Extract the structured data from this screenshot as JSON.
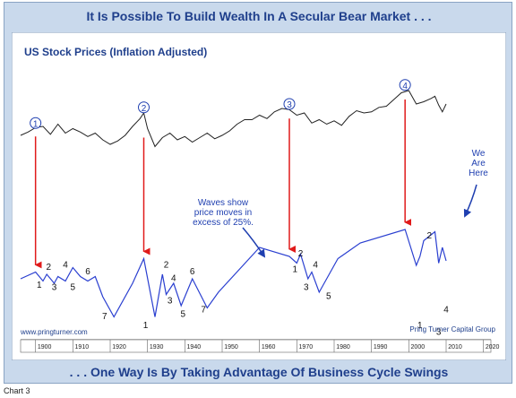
{
  "headline_top": "It Is Possible To Build Wealth In A Secular Bear Market . . .",
  "headline_bottom": ". . . One Way Is By Taking Advantage Of Business Cycle Swings",
  "caption": "Chart 3",
  "colors": {
    "frame_bg": "#c9d9ec",
    "headline_text": "#1f3f8c",
    "price_line": "#222222",
    "cycle_line": "#2a3fd0",
    "arrow": "#e01a1a",
    "annotation_text": "#1f3fb0"
  },
  "chart_data": {
    "type": "line",
    "title": "US Stock Prices (Inflation Adjusted)",
    "source_left": "www.pringturner.com",
    "source_right": "Pring Turner Capital Group",
    "xlim": [
      1896,
      2022
    ],
    "x_ticks": [
      "1900",
      "1910",
      "1920",
      "1930",
      "1940",
      "1950",
      "1960",
      "1970",
      "1980",
      "1990",
      "2000",
      "2010",
      "2020"
    ],
    "x_tick_values": [
      1900,
      1910,
      1920,
      1930,
      1940,
      1950,
      1960,
      1970,
      1980,
      1990,
      2000,
      2010,
      2020
    ],
    "grid": false,
    "legend": "none",
    "series": [
      {
        "x": [
          1896,
          1898,
          1900,
          1902,
          1904,
          1906,
          1908,
          1910,
          1912,
          1914,
          1916,
          1918,
          1920,
          1922,
          1924,
          1926,
          1928,
          1929,
          1930,
          1932,
          1934,
          1936,
          1938,
          1940,
          1942,
          1944,
          1946,
          1948,
          1950,
          1952,
          1954,
          1956,
          1958,
          1960,
          1962,
          1964,
          1966,
          1968,
          1970,
          1972,
          1974,
          1976,
          1978,
          1980,
          1982,
          1984,
          1986,
          1988,
          1990,
          1992,
          1994,
          1996,
          1998,
          2000,
          2002,
          2004,
          2006,
          2007,
          2008,
          2009,
          2010
        ],
        "y": [
          36,
          39,
          43,
          44,
          37,
          46,
          38,
          42,
          39,
          35,
          38,
          32,
          28,
          31,
          36,
          44,
          51,
          56,
          42,
          26,
          34,
          38,
          32,
          35,
          30,
          34,
          38,
          33,
          36,
          40,
          46,
          50,
          50,
          54,
          51,
          57,
          60,
          59,
          54,
          56,
          47,
          50,
          46,
          49,
          45,
          53,
          58,
          56,
          57,
          61,
          62,
          68,
          74,
          76,
          64,
          66,
          69,
          71,
          63,
          57,
          64
        ]
      },
      {
        "x": [
          1896,
          1900,
          1902,
          1903,
          1905,
          1906,
          1908,
          1910,
          1912,
          1914,
          1916,
          1918,
          1921,
          1926,
          1929,
          1932,
          1934,
          1935,
          1937,
          1939,
          1942,
          1946,
          1949,
          1960,
          1968,
          1970,
          1971,
          1973,
          1974,
          1976,
          1981,
          1987,
          1999,
          2002,
          2003,
          2004,
          2007,
          2008,
          2009,
          2010
        ],
        "y": [
          4,
          7,
          3,
          6,
          2,
          5,
          3,
          9,
          5,
          3,
          5,
          -4,
          -13,
          2,
          13,
          -13,
          6,
          -3,
          2,
          -8,
          4,
          -9,
          -2,
          18,
          14,
          11,
          15,
          4,
          7,
          -2,
          13,
          20,
          26,
          10,
          14,
          21,
          25,
          11,
          18,
          12
        ]
      }
    ],
    "wave_labels": [
      "1",
      "2",
      "3",
      "4",
      "5",
      "6",
      "7",
      "1",
      "2",
      "3",
      "4",
      "5",
      "6",
      "7",
      "1",
      "2",
      "3",
      "4",
      "5",
      "1",
      "2",
      "3",
      "4"
    ],
    "wave_label_x": [
      1901,
      1903.5,
      1905,
      1908,
      1910,
      1914,
      1918.5,
      1929.5,
      1935,
      1936,
      1937,
      1939.5,
      1942,
      1945,
      1969.5,
      1971,
      1972.5,
      1975,
      1978.5,
      2003,
      2005.5,
      2008,
      2010
    ],
    "wave_label_y": [
      0,
      8,
      -1,
      9,
      -1,
      6,
      -14,
      -18,
      9,
      -7,
      3,
      -13,
      6,
      -11,
      7,
      14,
      -1,
      9,
      -5,
      -18,
      22,
      -21,
      -11
    ],
    "peak_markers": [
      "1",
      "2",
      "3",
      "4"
    ],
    "peak_marker_x": [
      1900,
      1929,
      1968,
      1999
    ],
    "peak_marker_y": [
      47,
      61,
      64,
      81
    ],
    "annotations": [
      "Waves show price moves in excess of 25%.",
      "We Are Here"
    ]
  }
}
